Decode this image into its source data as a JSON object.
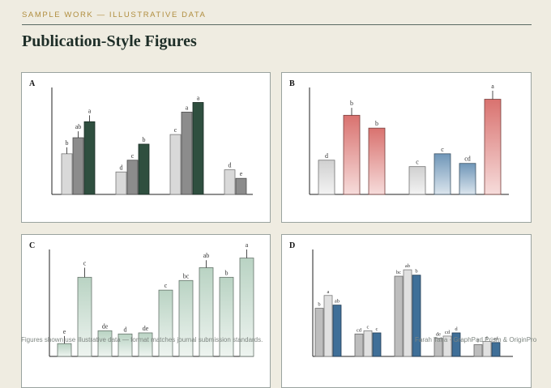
{
  "header": {
    "label": "SAMPLE WORK — ILLUSTRATIVE DATA",
    "title": "Publication-Style Figures"
  },
  "footer": {
    "left": "Figures shown use illustrative data — format matches journal submission standards.",
    "right": "Farah Taha · GraphPad Prism & OriginPro"
  },
  "colors": {
    "accent": "#b08d3e",
    "title": "#1e2e28",
    "background": "#efece1"
  },
  "chart_data": [
    {
      "panel_label": "A",
      "type": "bar",
      "ylim": [
        0,
        100
      ],
      "groups": [
        {
          "bars": [
            {
              "value": 38,
              "err": 6,
              "letter": "b",
              "fill": "#d9d9d9"
            },
            {
              "value": 53,
              "err": 6,
              "letter": "ab",
              "fill": "#8c8c8c"
            },
            {
              "value": 68,
              "err": 6,
              "letter": "a",
              "fill": "#2f4f3f"
            }
          ]
        },
        {
          "bars": [
            {
              "value": 21,
              "err": 0,
              "letter": "d",
              "fill": "#d9d9d9"
            },
            {
              "value": 32,
              "err": 0,
              "letter": "c",
              "fill": "#8c8c8c"
            },
            {
              "value": 47,
              "err": 0,
              "letter": "b",
              "fill": "#2f4f3f"
            }
          ]
        },
        {
          "bars": [
            {
              "value": 56,
              "err": 0,
              "letter": "c",
              "fill": "#d9d9d9"
            },
            {
              "value": 77,
              "err": 0,
              "letter": "a",
              "fill": "#8c8c8c"
            },
            {
              "value": 86,
              "err": 0,
              "letter": "a",
              "fill": "#2f4f3f"
            }
          ]
        },
        {
          "bars": [
            {
              "value": 23,
              "err": 0,
              "letter": "d",
              "fill": "#d9d9d9"
            },
            {
              "value": 15,
              "err": 0,
              "letter": "e",
              "fill": "#8c8c8c"
            }
          ]
        }
      ]
    },
    {
      "panel_label": "B",
      "type": "bar",
      "ylim": [
        0,
        100
      ],
      "groups": [
        {
          "bars": [
            {
              "value": 32,
              "err": 0,
              "letter": "d",
              "fill": "#d0d0d0",
              "grad": true
            },
            {
              "value": 74,
              "err": 7,
              "letter": "b",
              "fill": "#d9726f",
              "grad": true
            },
            {
              "value": 62,
              "err": 0,
              "letter": "b",
              "fill": "#d9726f",
              "grad": true
            }
          ]
        },
        {
          "bars": [
            {
              "value": 26,
              "err": 0,
              "letter": "c",
              "fill": "#d0d0d0",
              "grad": true
            },
            {
              "value": 38,
              "err": 0,
              "letter": "c",
              "fill": "#6f96b8",
              "grad": true
            },
            {
              "value": 29,
              "err": 0,
              "letter": "cd",
              "fill": "#6f96b8",
              "grad": true
            },
            {
              "value": 89,
              "err": 8,
              "letter": "a",
              "fill": "#d9726f",
              "grad": true
            }
          ]
        }
      ]
    },
    {
      "panel_label": "C",
      "type": "bar",
      "ylim": [
        0,
        100
      ],
      "groups": [
        {
          "bars": [
            {
              "value": 12,
              "err": 7,
              "letter": "e",
              "fill": "#b9d3c3",
              "grad": true
            },
            {
              "value": 74,
              "err": 9,
              "letter": "c",
              "fill": "#b9d3c3",
              "grad": true
            },
            {
              "value": 24,
              "err": 0,
              "letter": "de",
              "fill": "#b9d3c3",
              "grad": true
            },
            {
              "value": 21,
              "err": 0,
              "letter": "d",
              "fill": "#b9d3c3",
              "grad": true
            },
            {
              "value": 22,
              "err": 0,
              "letter": "de",
              "fill": "#b9d3c3",
              "grad": true
            },
            {
              "value": 62,
              "err": 0,
              "letter": "c",
              "fill": "#b9d3c3",
              "grad": true
            },
            {
              "value": 71,
              "err": 0,
              "letter": "bc",
              "fill": "#b9d3c3",
              "grad": true
            },
            {
              "value": 83,
              "err": 7,
              "letter": "ab",
              "fill": "#b9d3c3",
              "grad": true
            },
            {
              "value": 74,
              "err": 0,
              "letter": "b",
              "fill": "#b9d3c3",
              "grad": true
            },
            {
              "value": 92,
              "err": 8,
              "letter": "a",
              "fill": "#b9d3c3",
              "grad": true
            }
          ]
        }
      ]
    },
    {
      "panel_label": "D",
      "type": "bar",
      "ylim": [
        0,
        100
      ],
      "groups": [
        {
          "bars": [
            {
              "value": 45,
              "err": 0,
              "letter": "b",
              "fill": "#bdbdbd"
            },
            {
              "value": 57,
              "err": 0,
              "letter": "a",
              "fill": "#e0e0e0"
            },
            {
              "value": 48,
              "err": 0,
              "letter": "ab",
              "fill": "#3f6f98"
            }
          ]
        },
        {
          "bars": [
            {
              "value": 21,
              "err": 0,
              "letter": "cd",
              "fill": "#bdbdbd"
            },
            {
              "value": 24,
              "err": 0,
              "letter": "c",
              "fill": "#e0e0e0"
            },
            {
              "value": 22,
              "err": 0,
              "letter": "c",
              "fill": "#3f6f98"
            }
          ]
        },
        {
          "bars": [
            {
              "value": 75,
              "err": 0,
              "letter": "bc",
              "fill": "#bdbdbd"
            },
            {
              "value": 81,
              "err": 0,
              "letter": "ab",
              "fill": "#e0e0e0"
            },
            {
              "value": 76,
              "err": 0,
              "letter": "b",
              "fill": "#3f6f98"
            }
          ]
        },
        {
          "bars": [
            {
              "value": 17,
              "err": 0,
              "letter": "de",
              "fill": "#bdbdbd"
            },
            {
              "value": 19,
              "err": 0,
              "letter": "cd",
              "fill": "#e0e0e0"
            },
            {
              "value": 22,
              "err": 0,
              "letter": "d",
              "fill": "#3f6f98"
            }
          ]
        },
        {
          "bars": [
            {
              "value": 11,
              "err": 0,
              "letter": "f",
              "fill": "#bdbdbd"
            },
            {
              "value": 14,
              "err": 0,
              "letter": "e",
              "fill": "#e0e0e0"
            },
            {
              "value": 13,
              "err": 0,
              "letter": "ef",
              "fill": "#3f6f98"
            }
          ]
        }
      ]
    }
  ]
}
